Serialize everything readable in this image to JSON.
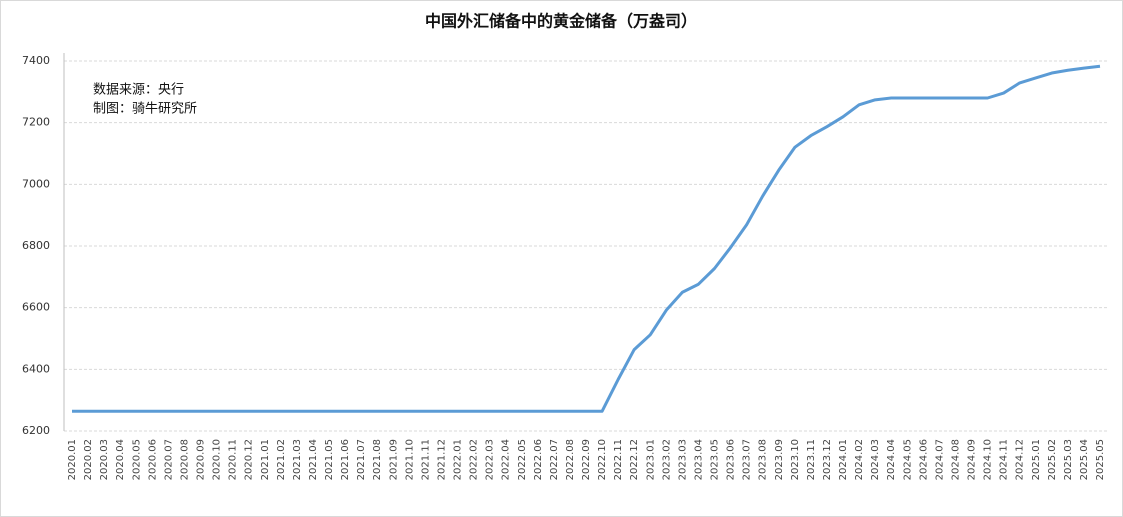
{
  "chart_data": {
    "type": "line",
    "title": "中国外汇储备中的黄金储备（万盎司）",
    "annotations": [
      "数据来源：央行",
      "制图：骑牛研究所"
    ],
    "categories": [
      "2020.01",
      "2020.02",
      "2020.03",
      "2020.04",
      "2020.05",
      "2020.06",
      "2020.07",
      "2020.08",
      "2020.09",
      "2020.10",
      "2020.11",
      "2020.12",
      "2021.01",
      "2021.02",
      "2021.03",
      "2021.04",
      "2021.05",
      "2021.06",
      "2021.07",
      "2021.08",
      "2021.09",
      "2021.10",
      "2021.11",
      "2021.12",
      "2022.01",
      "2022.02",
      "2022.03",
      "2022.04",
      "2022.05",
      "2022.06",
      "2022.07",
      "2022.08",
      "2022.09",
      "2022.10",
      "2022.11",
      "2022.12",
      "2023.01",
      "2023.02",
      "2023.03",
      "2023.04",
      "2023.05",
      "2023.06",
      "2023.07",
      "2023.08",
      "2023.09",
      "2023.10",
      "2023.11",
      "2023.12",
      "2024.01",
      "2024.02",
      "2024.03",
      "2024.04",
      "2024.05",
      "2024.06",
      "2024.07",
      "2024.08",
      "2024.09",
      "2024.10",
      "2024.11",
      "2024.12",
      "2025.01",
      "2025.02",
      "2025.03",
      "2025.04",
      "2025.05"
    ],
    "series": [
      {
        "name": "黄金储备",
        "color": "#5b9bd5",
        "values": [
          6264,
          6264,
          6264,
          6264,
          6264,
          6264,
          6264,
          6264,
          6264,
          6264,
          6264,
          6264,
          6264,
          6264,
          6264,
          6264,
          6264,
          6264,
          6264,
          6264,
          6264,
          6264,
          6264,
          6264,
          6264,
          6264,
          6264,
          6264,
          6264,
          6264,
          6264,
          6264,
          6264,
          6264,
          6367,
          6464,
          6512,
          6592,
          6650,
          6676,
          6727,
          6795,
          6869,
          6962,
          7046,
          7120,
          7158,
          7187,
          7219,
          7258,
          7274,
          7280,
          7280,
          7280,
          7280,
          7280,
          7280,
          7280,
          7296,
          7329,
          7345,
          7361,
          7370,
          7377,
          7383
        ]
      }
    ],
    "ylim": [
      6200,
      7400
    ],
    "yticks": [
      6200,
      6400,
      6600,
      6800,
      7000,
      7200,
      7400
    ],
    "grid": true
  }
}
